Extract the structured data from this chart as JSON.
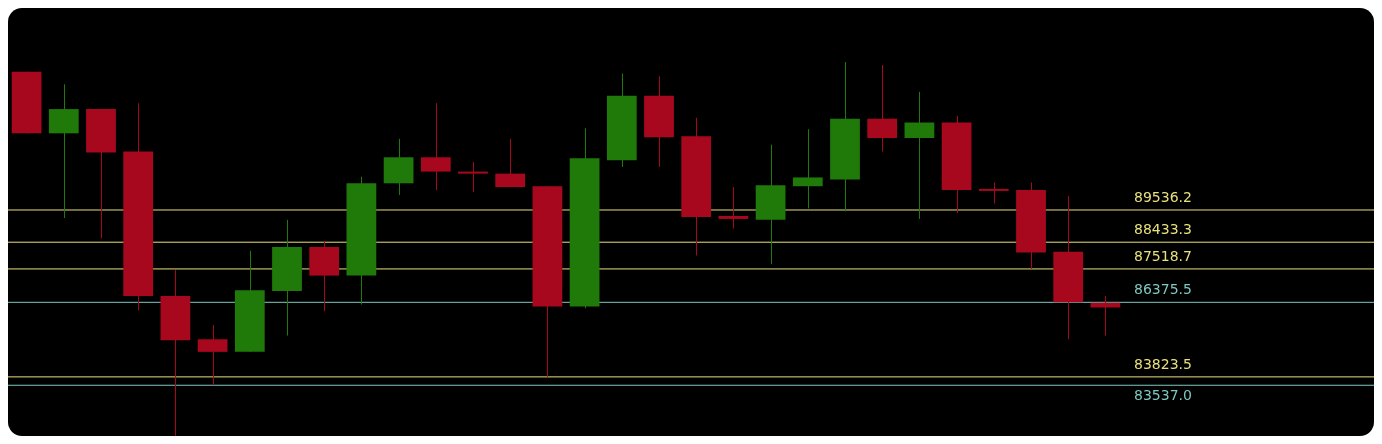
{
  "chart_data": {
    "type": "candlestick",
    "categories": [
      null,
      null,
      null,
      null,
      null,
      null,
      null,
      null,
      null,
      null,
      null,
      null,
      null,
      null,
      null,
      null,
      null,
      null,
      null,
      null,
      null,
      null,
      null,
      null,
      null,
      null,
      null,
      null,
      null,
      null
    ],
    "ohlc": [
      [
        94270,
        94270,
        92160,
        92160
      ],
      [
        92160,
        93840,
        89260,
        92990
      ],
      [
        92990,
        92990,
        88570,
        91500
      ],
      [
        91540,
        93190,
        86100,
        86590
      ],
      [
        86590,
        87480,
        81810,
        85080
      ],
      [
        85110,
        85600,
        83537,
        84680
      ],
      [
        84680,
        88140,
        84680,
        86790
      ],
      [
        86760,
        89200,
        85240,
        88270
      ],
      [
        88270,
        88470,
        86070,
        87290
      ],
      [
        87290,
        90680,
        86300,
        90450
      ],
      [
        90450,
        91970,
        90050,
        91340
      ],
      [
        91340,
        93190,
        90220,
        90850
      ],
      [
        90850,
        91180,
        90150,
        90780
      ],
      [
        90780,
        91970,
        90320,
        90320
      ],
      [
        90350,
        90350,
        83823.5,
        86230
      ],
      [
        86230,
        92330,
        86170,
        91310
      ],
      [
        91240,
        94210,
        91010,
        93450
      ],
      [
        93450,
        94110,
        91010,
        92030
      ],
      [
        92060,
        92690,
        87980,
        89300
      ],
      [
        89330,
        90320,
        88900,
        89230
      ],
      [
        89200,
        91770,
        87680,
        90380
      ],
      [
        90350,
        92300,
        89590,
        90650
      ],
      [
        90580,
        94600,
        89490,
        92660
      ],
      [
        92660,
        94500,
        91540,
        92000
      ],
      [
        92000,
        93580,
        89230,
        92530
      ],
      [
        92530,
        92760,
        89430,
        90220
      ],
      [
        90250,
        90480,
        89760,
        90190
      ],
      [
        90220,
        90480,
        87518.7,
        88080
      ],
      [
        88110,
        90020,
        85110,
        86375.5
      ],
      [
        86360,
        86590,
        85240,
        86200
      ]
    ],
    "colors": [
      "#a8081e",
      "#1f7a0a",
      "#a8081e",
      "#a8081e",
      "#a8081e",
      "#a8081e",
      "#1f7a0a",
      "#1f7a0a",
      "#a8081e",
      "#1f7a0a",
      "#1f7a0a",
      "#a8081e",
      "#a8081e",
      "#a8081e",
      "#a8081e",
      "#1f7a0a",
      "#1f7a0a",
      "#a8081e",
      "#a8081e",
      "#a8081e",
      "#1f7a0a",
      "#1f7a0a",
      "#1f7a0a",
      "#a8081e",
      "#1f7a0a",
      "#a8081e",
      "#a8081e",
      "#a8081e",
      "#a8081e",
      "#a8081e"
    ],
    "ylim": [
      81800,
      96450
    ],
    "ref_lines": [
      {
        "axis": "y",
        "value": 89536.2,
        "label": "89536.2",
        "color": "#e8e07a"
      },
      {
        "axis": "y",
        "value": 88433.3,
        "label": "88433.3",
        "color": "#e8e07a"
      },
      {
        "axis": "y",
        "value": 87518.7,
        "label": "87518.7",
        "color": "#e8e07a"
      },
      {
        "axis": "y",
        "value": 86375.5,
        "label": "86375.5",
        "color": "#7ec8c0"
      },
      {
        "axis": "y",
        "value": 83823.5,
        "label": "83823.5",
        "color": "#e8e07a"
      },
      {
        "axis": "y",
        "value": 83537.0,
        "label": "83537.0",
        "color": "#7ec8c0"
      }
    ]
  }
}
